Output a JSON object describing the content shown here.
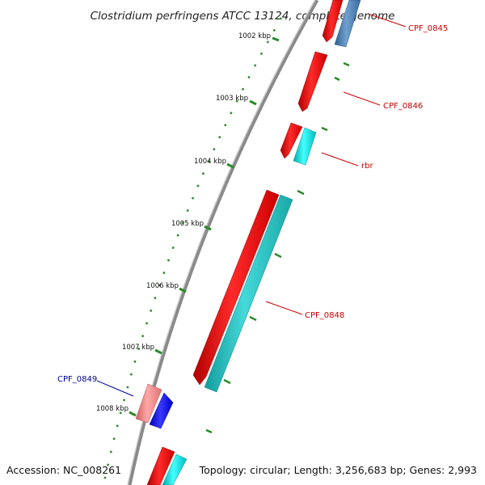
{
  "title": "Clostridium perfringens ATCC 13124, complete genome",
  "footer": {
    "accession": "Accession: NC_008261",
    "summary": "Topology: circular; Length: 3,256,683 bp; Genes: 2,993"
  },
  "ticks": [
    {
      "label": "1002 kbp"
    },
    {
      "label": "1003 kbp"
    },
    {
      "label": "1004 kbp"
    },
    {
      "label": "1005 kbp"
    },
    {
      "label": "1006 kbp"
    },
    {
      "label": "1007 kbp"
    },
    {
      "label": "1008 kbp"
    }
  ],
  "genes": [
    {
      "label": "CPF_0845",
      "label_color": "#cc0000"
    },
    {
      "label": "CPF_0846",
      "label_color": "#cc0000"
    },
    {
      "label": "rbr",
      "label_color": "#cc0000"
    },
    {
      "label": "CPF_0848",
      "label_color": "#cc0000"
    },
    {
      "label": "CPF_0849",
      "label_color": "#000099"
    }
  ],
  "colors": {
    "backbone": "#8a8a8a",
    "cds_red": "#ff0000",
    "cds_cyan": "#00e5e5",
    "cds_teal": "#22c4c4",
    "cds_steel": "#4a82b8",
    "cds_pink": "#f08080",
    "cds_blue": "#1010ee",
    "tick_green": "#2a8a2a"
  }
}
